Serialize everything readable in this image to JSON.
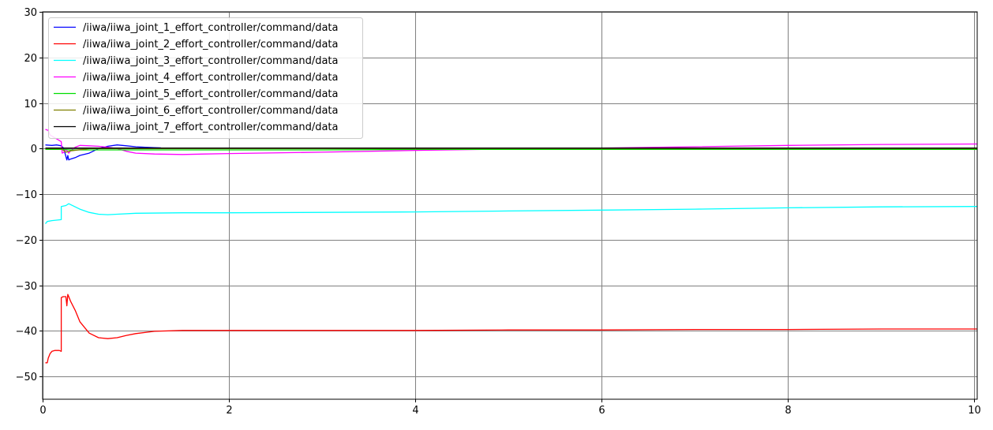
{
  "chart_data": {
    "type": "line",
    "title": "",
    "xlabel": "",
    "ylabel": "",
    "xlim": [
      0,
      10.03
    ],
    "ylim": [
      -55,
      30
    ],
    "xticks": [
      0,
      2,
      4,
      6,
      8,
      10
    ],
    "yticks": [
      -50,
      -40,
      -30,
      -20,
      -10,
      0,
      10,
      20,
      30
    ],
    "xtick_labels": [
      "0",
      "2",
      "4",
      "6",
      "8",
      "10"
    ],
    "ytick_labels": [
      "−50",
      "−40",
      "−30",
      "−20",
      "−10",
      "0",
      "10",
      "20",
      "30"
    ],
    "grid": true,
    "legend_position": "top-left",
    "series": [
      {
        "name": "/iiwa/iiwa_joint_1_effort_controller/command/data",
        "color": "#0000ff",
        "x": [
          0.03,
          0.1,
          0.15,
          0.2,
          0.22,
          0.24,
          0.26,
          0.27,
          0.28,
          0.3,
          0.35,
          0.4,
          0.5,
          0.6,
          0.7,
          0.8,
          0.9,
          1.0,
          1.1,
          1.2,
          1.27
        ],
        "y": [
          0.8,
          0.7,
          0.8,
          0.6,
          0.2,
          -1.0,
          -2.5,
          -1.5,
          -2.5,
          -2.3,
          -2.0,
          -1.5,
          -1.0,
          0.0,
          0.5,
          0.8,
          0.6,
          0.4,
          0.3,
          0.2,
          0.15
        ]
      },
      {
        "name": "/iiwa/iiwa_joint_2_effort_controller/command/data",
        "color": "#ff0000",
        "x": [
          0.03,
          0.05,
          0.06,
          0.08,
          0.1,
          0.13,
          0.15,
          0.18,
          0.2,
          0.2,
          0.22,
          0.25,
          0.26,
          0.27,
          0.28,
          0.3,
          0.35,
          0.4,
          0.5,
          0.6,
          0.7,
          0.8,
          0.9,
          1.0,
          1.2,
          1.5,
          2.0,
          3.0,
          4.0,
          5.0,
          6.0,
          7.0,
          8.0,
          9.0,
          10.03
        ],
        "y": [
          -47,
          -47,
          -46,
          -45,
          -44.5,
          -44.3,
          -44.3,
          -44.3,
          -44.5,
          -32.7,
          -32.5,
          -32.5,
          -34.5,
          -32.0,
          -32.5,
          -33.5,
          -35.5,
          -38.0,
          -40.5,
          -41.5,
          -41.7,
          -41.5,
          -41.0,
          -40.6,
          -40.1,
          -39.9,
          -39.9,
          -39.9,
          -39.9,
          -39.8,
          -39.8,
          -39.7,
          -39.7,
          -39.6,
          -39.6
        ]
      },
      {
        "name": "/iiwa/iiwa_joint_3_effort_controller/command/data",
        "color": "#00ffff",
        "x": [
          0.03,
          0.05,
          0.1,
          0.15,
          0.2,
          0.2,
          0.25,
          0.28,
          0.3,
          0.35,
          0.4,
          0.5,
          0.6,
          0.7,
          0.8,
          1.0,
          1.5,
          2.0,
          3.0,
          4.0,
          5.0,
          6.0,
          7.0,
          8.0,
          9.0,
          10.03
        ],
        "y": [
          -16.5,
          -16.0,
          -15.8,
          -15.7,
          -15.6,
          -12.7,
          -12.5,
          -12.1,
          -12.3,
          -12.8,
          -13.3,
          -14.0,
          -14.4,
          -14.5,
          -14.4,
          -14.2,
          -14.1,
          -14.1,
          -14.0,
          -13.9,
          -13.7,
          -13.5,
          -13.3,
          -13.0,
          -12.8,
          -12.7
        ]
      },
      {
        "name": "/iiwa/iiwa_joint_4_effort_controller/command/data",
        "color": "#ff00ff",
        "x": [
          0.03,
          0.06,
          0.08,
          0.12,
          0.16,
          0.2,
          0.21,
          0.23,
          0.25,
          0.28,
          0.3,
          0.35,
          0.4,
          0.5,
          0.6,
          0.7,
          0.8,
          0.9,
          1.0,
          1.2,
          1.5,
          2.0,
          3.0,
          4.0,
          5.0,
          6.0,
          7.0,
          8.0,
          9.0,
          10.03
        ],
        "y": [
          4.2,
          4.0,
          3.0,
          2.5,
          2.0,
          1.5,
          -1.0,
          -0.8,
          -0.2,
          -1.0,
          -0.5,
          0.3,
          0.7,
          0.6,
          0.5,
          0.3,
          0.0,
          -0.6,
          -1.0,
          -1.2,
          -1.3,
          -1.1,
          -0.8,
          -0.4,
          -0.1,
          0.1,
          0.4,
          0.7,
          0.9,
          1.0
        ]
      },
      {
        "name": "/iiwa/iiwa_joint_5_effort_controller/command/data",
        "color": "#00dd00",
        "x": [
          0.03,
          0.2,
          0.3,
          0.5,
          1.0,
          2.0,
          3.0,
          4.0,
          5.0,
          6.0,
          7.0,
          8.0,
          9.0,
          10.03
        ],
        "y": [
          -0.2,
          -0.2,
          -0.3,
          -0.3,
          -0.3,
          -0.3,
          -0.3,
          -0.2,
          -0.2,
          -0.2,
          -0.2,
          -0.2,
          -0.2,
          -0.2
        ]
      },
      {
        "name": "/iiwa/iiwa_joint_6_effort_controller/command/data",
        "color": "#808000",
        "x": [
          0.03,
          0.2,
          0.25,
          0.3,
          0.5,
          1.0,
          2.0,
          4.0,
          6.0,
          8.0,
          10.03
        ],
        "y": [
          0.0,
          0.0,
          -0.8,
          -0.5,
          0.0,
          0.0,
          0.0,
          0.0,
          0.0,
          0.0,
          0.0
        ]
      },
      {
        "name": "/iiwa/iiwa_joint_7_effort_controller/command/data",
        "color": "#000000",
        "x": [
          0.03,
          0.2,
          0.3,
          0.5,
          1.0,
          2.0,
          4.0,
          6.0,
          8.0,
          10.03
        ],
        "y": [
          0.1,
          0.1,
          0.1,
          0.1,
          0.1,
          0.1,
          0.1,
          0.1,
          0.1,
          0.1
        ]
      }
    ]
  }
}
